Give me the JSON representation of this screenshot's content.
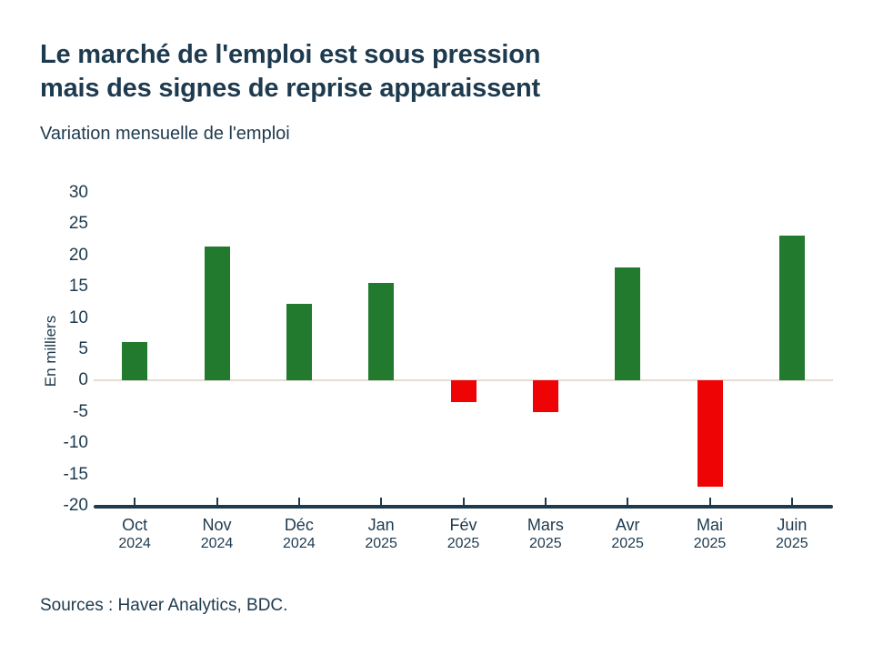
{
  "header": {
    "title": "Le marché de l'emploi est sous pression\nmais des signes de reprise apparaissent",
    "subtitle": "Variation mensuelle de l'emploi"
  },
  "chart_data": {
    "type": "bar",
    "title": "Variation mensuelle de l'emploi",
    "xlabel": "",
    "ylabel": "En milliers",
    "ylim": [
      -20,
      30
    ],
    "ytick_step": 5,
    "grid": false,
    "legend": "none",
    "categories": [
      "Oct 2024",
      "Nov 2024",
      "Déc 2024",
      "Jan 2025",
      "Fév 2025",
      "Mars 2025",
      "Avr 2025",
      "Mai 2025",
      "Juin 2025"
    ],
    "x_labels": [
      {
        "month": "Oct",
        "year": "2024"
      },
      {
        "month": "Nov",
        "year": "2024"
      },
      {
        "month": "Déc",
        "year": "2024"
      },
      {
        "month": "Jan",
        "year": "2025"
      },
      {
        "month": "Fév",
        "year": "2025"
      },
      {
        "month": "Mars",
        "year": "2025"
      },
      {
        "month": "Avr",
        "year": "2025"
      },
      {
        "month": "Mai",
        "year": "2025"
      },
      {
        "month": "Juin",
        "year": "2025"
      }
    ],
    "values": [
      6.1,
      21.4,
      12.2,
      15.6,
      -3.5,
      -5.0,
      18.1,
      -17.0,
      23.2
    ],
    "colors": {
      "positive": "#217a2d",
      "negative": "#ee0404",
      "zero_line": "#e3ddd2",
      "axis": "#1d3a4e",
      "text": "#1d3a4e"
    }
  },
  "footer": {
    "sources": "Sources : Haver Analytics, BDC."
  }
}
